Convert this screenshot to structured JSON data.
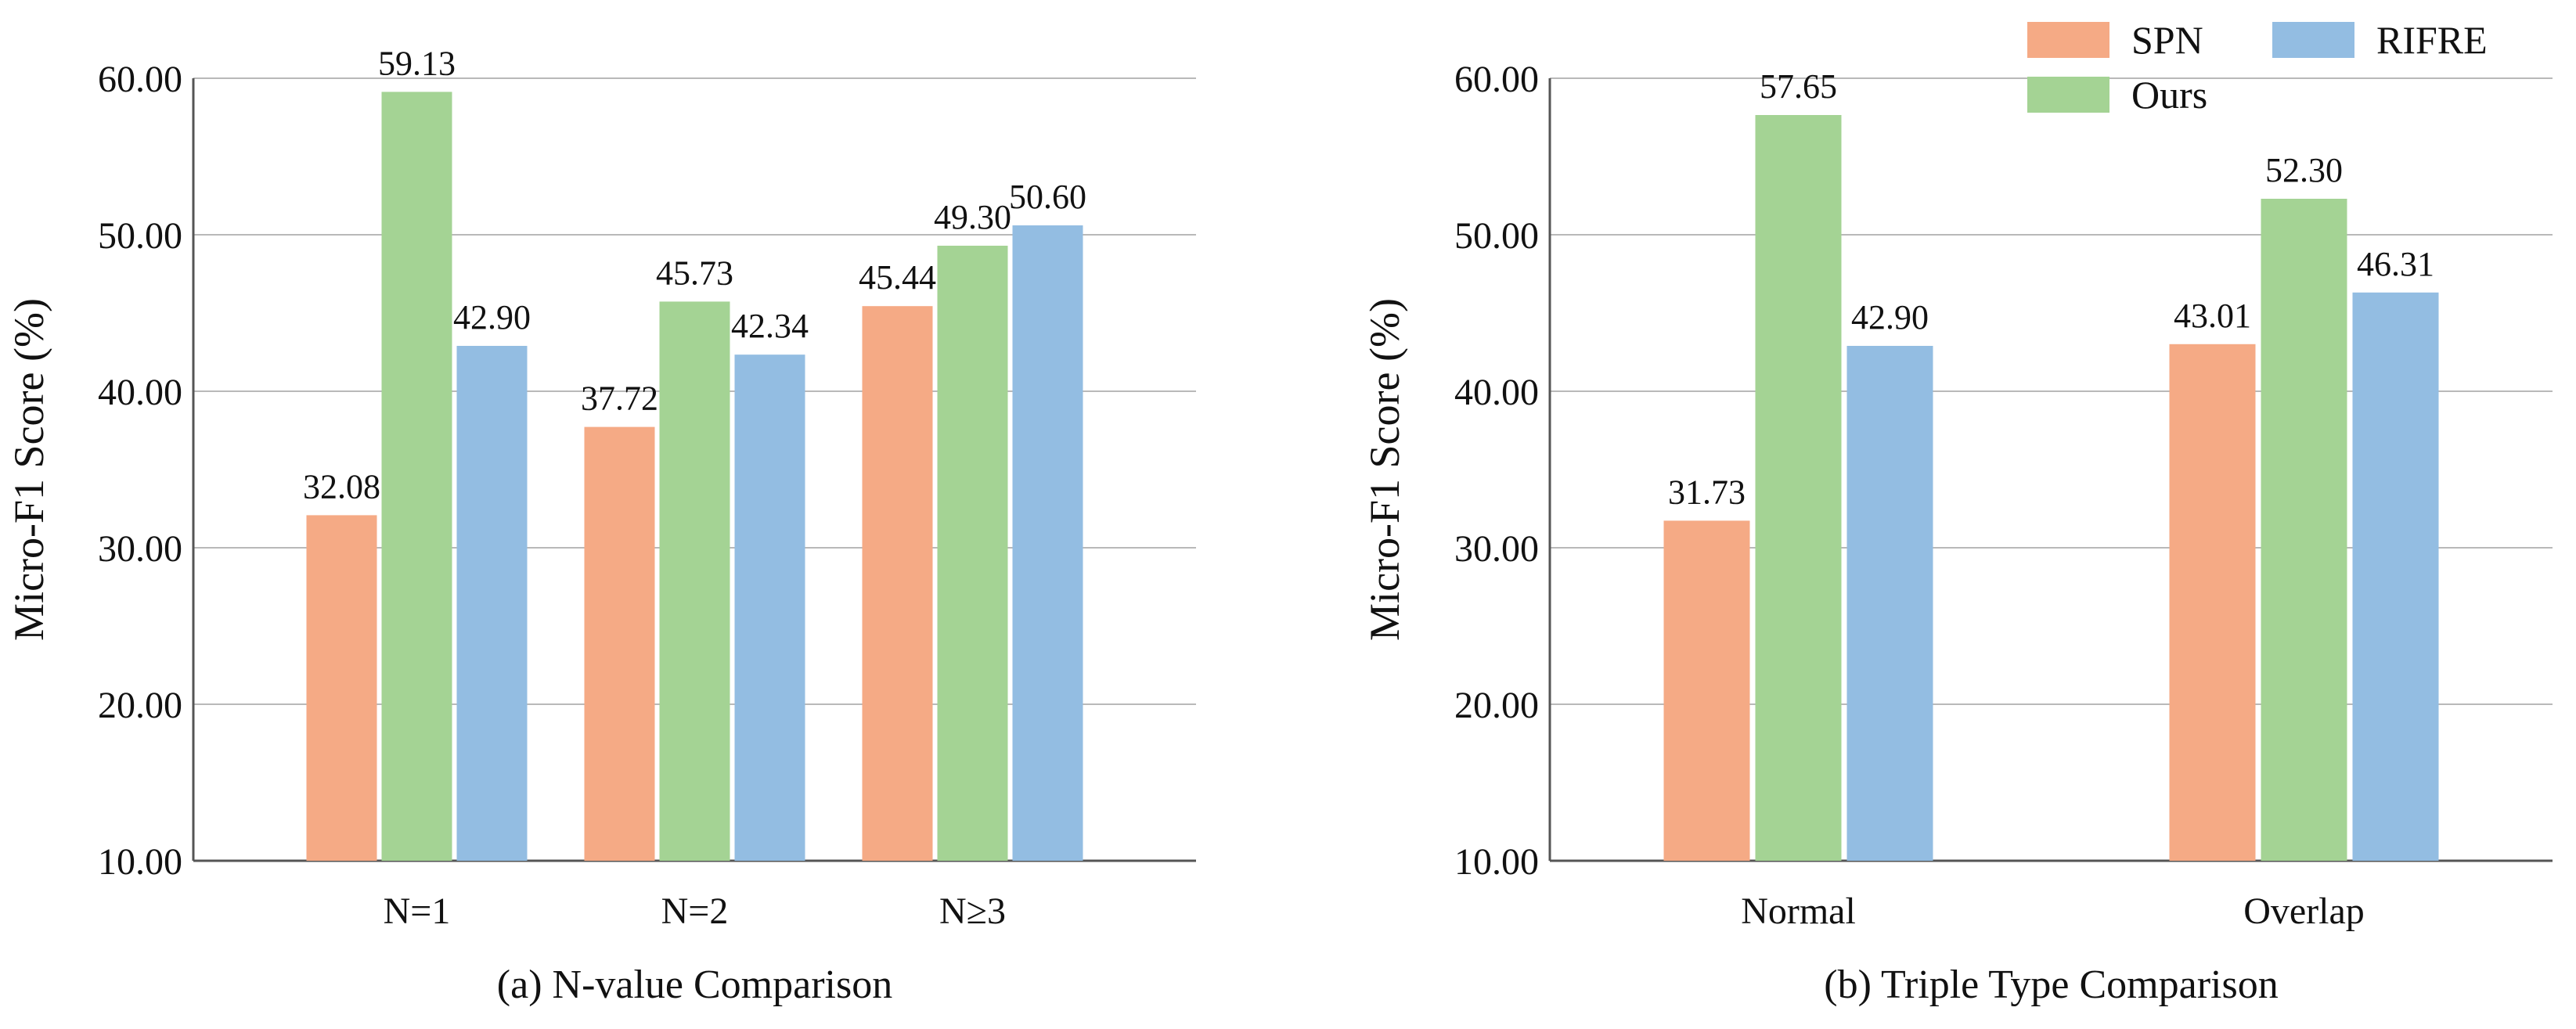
{
  "legend": {
    "position": "top-right",
    "items": [
      {
        "name": "SPN",
        "color": "#f5aa85"
      },
      {
        "name": "RIFRE",
        "color": "#93bde2"
      },
      {
        "name": "Ours",
        "color": "#a4d394"
      }
    ]
  },
  "chart_data": [
    {
      "type": "bar",
      "title": "(a) N-value Comparison",
      "xlabel": "",
      "ylabel": "Micro-F1 Score (%)",
      "ylim": [
        10,
        60
      ],
      "yticks": [
        "10.00",
        "20.00",
        "30.00",
        "40.00",
        "50.00",
        "60.00"
      ],
      "grid": true,
      "categories": [
        "N=1",
        "N=2",
        "N≥3"
      ],
      "series": [
        {
          "name": "SPN",
          "color": "#f5aa85",
          "values": [
            32.08,
            37.72,
            45.44
          ],
          "labels": [
            "32.08",
            "37.72",
            "45.44"
          ]
        },
        {
          "name": "Ours",
          "color": "#a4d394",
          "values": [
            59.13,
            45.73,
            49.3
          ],
          "labels": [
            "59.13",
            "45.73",
            "49.30"
          ]
        },
        {
          "name": "RIFRE",
          "color": "#93bde2",
          "values": [
            42.9,
            42.34,
            50.6
          ],
          "labels": [
            "42.90",
            "42.34",
            "50.60"
          ]
        }
      ]
    },
    {
      "type": "bar",
      "title": "(b) Triple Type Comparison",
      "xlabel": "",
      "ylabel": "Micro-F1 Score (%)",
      "ylim": [
        10,
        60
      ],
      "yticks": [
        "10.00",
        "20.00",
        "30.00",
        "40.00",
        "50.00",
        "60.00"
      ],
      "grid": true,
      "categories": [
        "Normal",
        "Overlap"
      ],
      "series": [
        {
          "name": "SPN",
          "color": "#f5aa85",
          "values": [
            31.73,
            43.01
          ],
          "labels": [
            "31.73",
            "43.01"
          ]
        },
        {
          "name": "Ours",
          "color": "#a4d394",
          "values": [
            57.65,
            52.3
          ],
          "labels": [
            "57.65",
            "52.30"
          ]
        },
        {
          "name": "RIFRE",
          "color": "#93bde2",
          "values": [
            42.9,
            46.31
          ],
          "labels": [
            "42.90",
            "46.31"
          ]
        }
      ]
    }
  ]
}
